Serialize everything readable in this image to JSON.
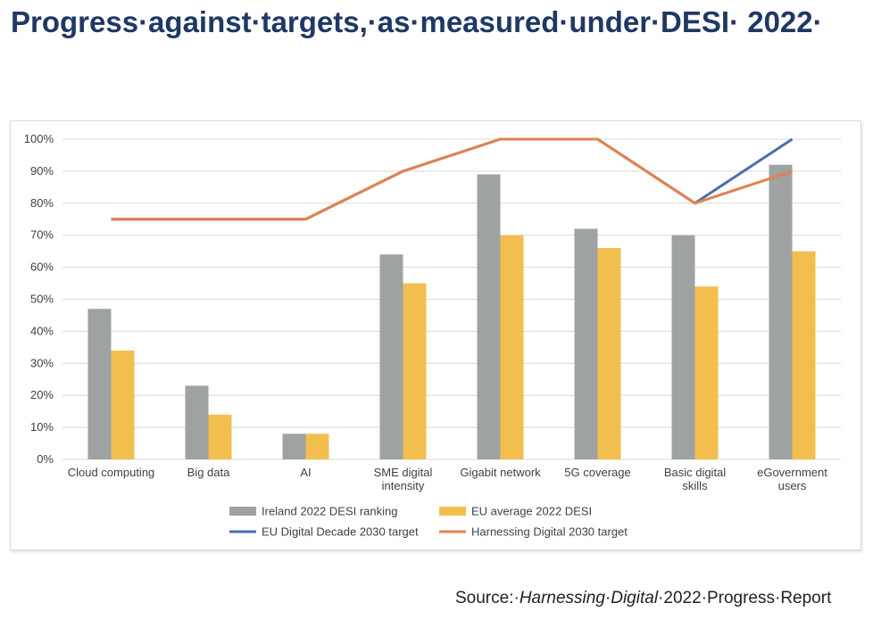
{
  "title": "Progress·against·targets,·as·measured·under·DESI· 2022·",
  "source": {
    "prefix": "Source:·",
    "publication": "Harnessing·Digital",
    "suffix": "·2022·Progress·Report"
  },
  "colors": {
    "ireland": "#9ea2a2",
    "eu_average": "#f2bf4f",
    "eu_target": "#4a6fb1",
    "harnessing_target": "#e0834d",
    "grid": "#d9d9d9",
    "axis_text": "#404040"
  },
  "chart_data": {
    "type": "bar",
    "categories": [
      [
        "Cloud computing"
      ],
      [
        "Big data"
      ],
      [
        "AI"
      ],
      [
        "SME digital",
        "intensity"
      ],
      [
        "Gigabit network"
      ],
      [
        "5G coverage"
      ],
      [
        "Basic digital",
        "skills"
      ],
      [
        "eGovernment",
        "users"
      ]
    ],
    "ylim": [
      0,
      100
    ],
    "yticks": [
      "0%",
      "10%",
      "20%",
      "30%",
      "40%",
      "50%",
      "60%",
      "70%",
      "80%",
      "90%",
      "100%"
    ],
    "grid": true,
    "legend_position": "bottom",
    "series": [
      {
        "name": "Ireland 2022 DESI ranking",
        "kind": "bar",
        "color_key": "ireland",
        "values": [
          47,
          23,
          8,
          64,
          89,
          72,
          70,
          92
        ]
      },
      {
        "name": "EU average 2022 DESI",
        "kind": "bar",
        "color_key": "eu_average",
        "values": [
          34,
          14,
          8,
          55,
          70,
          66,
          54,
          65
        ]
      },
      {
        "name": "EU Digital Decade 2030 target",
        "kind": "line",
        "color_key": "eu_target",
        "values": [
          75,
          75,
          75,
          90,
          100,
          100,
          80,
          100
        ]
      },
      {
        "name": "Harnessing Digital 2030 target",
        "kind": "line",
        "color_key": "harnessing_target",
        "values": [
          75,
          75,
          75,
          90,
          100,
          100,
          80,
          90
        ]
      }
    ]
  }
}
